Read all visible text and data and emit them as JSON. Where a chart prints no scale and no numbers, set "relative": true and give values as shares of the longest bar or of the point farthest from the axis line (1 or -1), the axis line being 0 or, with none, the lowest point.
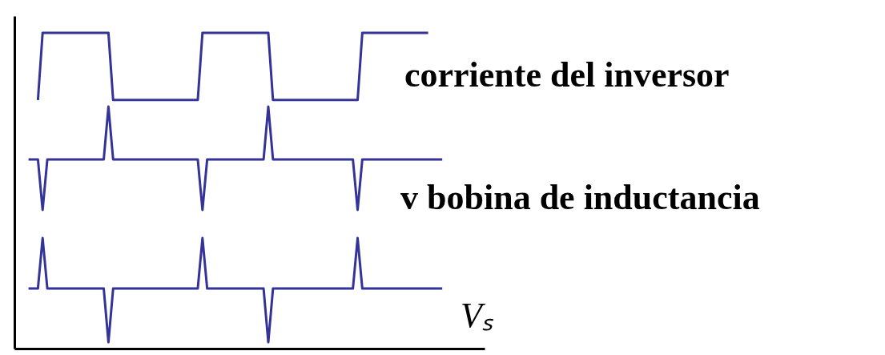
{
  "chart_data": {
    "type": "line",
    "relative": true,
    "grid": false,
    "line_style": "solid",
    "categories": [
      null,
      null,
      null,
      null,
      null,
      null,
      null,
      null,
      null,
      null,
      null,
      null,
      null,
      null,
      null,
      null,
      null,
      null,
      null,
      null,
      null,
      null,
      null,
      null,
      null,
      null,
      null,
      null,
      null,
      null,
      null,
      null,
      null,
      null,
      null,
      null,
      null,
      null,
      null,
      null,
      null,
      null,
      null,
      null,
      null,
      null,
      null,
      null,
      null,
      null,
      null,
      null,
      null,
      null,
      null,
      null,
      null,
      null,
      null,
      null,
      null,
      null,
      null,
      null,
      null,
      null,
      null,
      null,
      null,
      null,
      null,
      null,
      null,
      null,
      null,
      null,
      null,
      null,
      null,
      null,
      null,
      null,
      null,
      null,
      null,
      null,
      null,
      null,
      null,
      null,
      null,
      null,
      null,
      null,
      null,
      null,
      null,
      null,
      null,
      null,
      null
    ],
    "series": [
      {
        "name": "corriente del inversor",
        "color": "#333399",
        "values": [
          null,
          null,
          null,
          null,
          null,
          0.787,
          1.0,
          1.0,
          1.0,
          1.0,
          1.0,
          1.0,
          1.0,
          1.0,
          1.0,
          1.0,
          1.0,
          1.0,
          1.0,
          1.0,
          1.0,
          0.787,
          0.787,
          0.787,
          0.787,
          0.787,
          0.787,
          0.787,
          0.787,
          0.787,
          0.787,
          0.787,
          0.787,
          0.787,
          0.787,
          0.787,
          0.787,
          0.787,
          0.787,
          0.787,
          1.0,
          1.0,
          1.0,
          1.0,
          1.0,
          1.0,
          1.0,
          1.0,
          1.0,
          1.0,
          1.0,
          1.0,
          1.0,
          1.0,
          1.0,
          0.787,
          0.787,
          0.787,
          0.787,
          0.787,
          0.787,
          0.787,
          0.787,
          0.787,
          0.787,
          0.787,
          0.787,
          0.787,
          0.787,
          0.787,
          0.787,
          0.787,
          0.787,
          0.787,
          1.0,
          1.0,
          1.0,
          1.0,
          1.0,
          1.0,
          1.0,
          1.0,
          1.0,
          1.0,
          1.0,
          1.0,
          1.0,
          1.0,
          1.0,
          null,
          null,
          null,
          null,
          null,
          null,
          null,
          null,
          null,
          null,
          null,
          null
        ]
      },
      {
        "name": "v bobina de inductancia",
        "color": "#333399",
        "values": [
          null,
          null,
          null,
          0.599,
          0.599,
          0.599,
          0.439,
          0.599,
          0.599,
          0.599,
          0.599,
          0.599,
          0.599,
          0.599,
          0.599,
          0.599,
          0.599,
          0.599,
          0.599,
          0.599,
          0.766,
          0.599,
          0.599,
          0.599,
          0.599,
          0.599,
          0.599,
          0.599,
          0.599,
          0.599,
          0.599,
          0.599,
          0.599,
          0.599,
          0.599,
          0.599,
          0.599,
          0.599,
          0.599,
          0.599,
          0.439,
          0.599,
          0.599,
          0.599,
          0.599,
          0.599,
          0.599,
          0.599,
          0.599,
          0.599,
          0.599,
          0.599,
          0.599,
          0.599,
          0.766,
          0.599,
          0.599,
          0.599,
          0.599,
          0.599,
          0.599,
          0.599,
          0.599,
          0.599,
          0.599,
          0.599,
          0.599,
          0.599,
          0.599,
          0.599,
          0.599,
          0.599,
          0.599,
          0.439,
          0.599,
          0.599,
          0.599,
          0.599,
          0.599,
          0.599,
          0.599,
          0.599,
          0.599,
          0.599,
          0.599,
          0.599,
          0.599,
          0.599,
          0.599,
          0.599,
          0.599,
          0.599,
          null,
          null,
          null,
          null,
          null,
          null,
          null,
          null,
          null
        ]
      },
      {
        "name": "Vₛ",
        "color": "#333399",
        "values": [
          null,
          null,
          null,
          0.19,
          0.19,
          0.19,
          0.35,
          0.19,
          0.19,
          0.19,
          0.19,
          0.19,
          0.19,
          0.19,
          0.19,
          0.19,
          0.19,
          0.19,
          0.19,
          0.19,
          0.02,
          0.19,
          0.19,
          0.19,
          0.19,
          0.19,
          0.19,
          0.19,
          0.19,
          0.19,
          0.19,
          0.19,
          0.19,
          0.19,
          0.19,
          0.19,
          0.19,
          0.19,
          0.19,
          0.19,
          0.35,
          0.19,
          0.19,
          0.19,
          0.19,
          0.19,
          0.19,
          0.19,
          0.19,
          0.19,
          0.19,
          0.19,
          0.19,
          0.19,
          0.02,
          0.19,
          0.19,
          0.19,
          0.19,
          0.19,
          0.19,
          0.19,
          0.19,
          0.19,
          0.19,
          0.19,
          0.19,
          0.19,
          0.19,
          0.19,
          0.19,
          0.19,
          0.19,
          0.35,
          0.19,
          0.19,
          0.19,
          0.19,
          0.19,
          0.19,
          0.19,
          0.19,
          0.19,
          0.19,
          0.19,
          0.19,
          0.19,
          0.19,
          0.19,
          0.19,
          0.19,
          0.19,
          null,
          null,
          null,
          null,
          null,
          null,
          null,
          null,
          null
        ]
      }
    ]
  }
}
